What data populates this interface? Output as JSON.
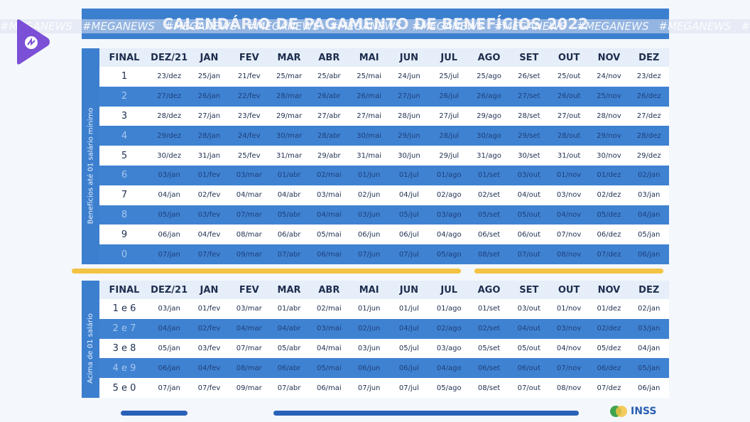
{
  "header": {
    "title": "CALENDÁRIO DE PAGAMENTO DE BENEFÍCIOS 2022",
    "watermark": "#MEGANEWS"
  },
  "columns": [
    "FINAL",
    "DEZ/21",
    "JAN",
    "FEV",
    "MAR",
    "ABR",
    "MAI",
    "JUN",
    "JUL",
    "AGO",
    "SET",
    "OUT",
    "NOV",
    "DEZ"
  ],
  "tables": [
    {
      "side_label": "Benefícios até 01 salário mínimo",
      "rows": [
        [
          "1",
          "23/dez",
          "25/jan",
          "21/fev",
          "25/mar",
          "25/abr",
          "25/mai",
          "24/jun",
          "25/jul",
          "25/ago",
          "26/set",
          "25/out",
          "24/nov",
          "23/dez"
        ],
        [
          "2",
          "27/dez",
          "26/jan",
          "22/fev",
          "28/mar",
          "26/abr",
          "26/mai",
          "27/jun",
          "26/jul",
          "26/ago",
          "27/set",
          "26/out",
          "25/nov",
          "26/dez"
        ],
        [
          "3",
          "28/dez",
          "27/jan",
          "23/fev",
          "29/mar",
          "27/abr",
          "27/mai",
          "28/jun",
          "27/jul",
          "29/ago",
          "28/set",
          "27/out",
          "28/nov",
          "27/dez"
        ],
        [
          "4",
          "29/dez",
          "28/jan",
          "24/fev",
          "30/mar",
          "28/abr",
          "30/mai",
          "29/jun",
          "28/jul",
          "30/ago",
          "29/set",
          "28/out",
          "29/nov",
          "28/dez"
        ],
        [
          "5",
          "30/dez",
          "31/jan",
          "25/fev",
          "31/mar",
          "29/abr",
          "31/mai",
          "30/jun",
          "29/jul",
          "31/ago",
          "30/set",
          "31/out",
          "30/nov",
          "29/dez"
        ],
        [
          "6",
          "03/jan",
          "01/fev",
          "03/mar",
          "01/abr",
          "02/mai",
          "01/jun",
          "01/jul",
          "01/ago",
          "01/set",
          "03/out",
          "01/nov",
          "01/dez",
          "02/jan"
        ],
        [
          "7",
          "04/jan",
          "02/fev",
          "04/mar",
          "04/abr",
          "03/mai",
          "02/jun",
          "04/jul",
          "02/ago",
          "02/set",
          "04/out",
          "03/nov",
          "02/dez",
          "03/jan"
        ],
        [
          "8",
          "05/jan",
          "03/fev",
          "07/mar",
          "05/abr",
          "04/mai",
          "03/jun",
          "05/jul",
          "03/ago",
          "05/set",
          "05/out",
          "04/nov",
          "05/dez",
          "04/jan"
        ],
        [
          "9",
          "06/jan",
          "04/fev",
          "08/mar",
          "06/abr",
          "05/mai",
          "06/jun",
          "06/jul",
          "04/ago",
          "06/set",
          "06/out",
          "07/nov",
          "06/dez",
          "05/jan"
        ],
        [
          "0",
          "07/jan",
          "07/fev",
          "09/mar",
          "07/abr",
          "06/mai",
          "07/jun",
          "07/jul",
          "05/ago",
          "08/set",
          "07/out",
          "08/nov",
          "07/dez",
          "06/jan"
        ]
      ]
    },
    {
      "side_label": "Acima de 01 salário",
      "rows": [
        [
          "1 e 6",
          "03/jan",
          "01/fev",
          "03/mar",
          "01/abr",
          "02/mai",
          "01/jun",
          "01/jul",
          "01/ago",
          "01/set",
          "03/out",
          "01/nov",
          "01/dez",
          "02/jan"
        ],
        [
          "2 e 7",
          "04/jan",
          "02/fev",
          "04/mar",
          "04/abr",
          "03/mai",
          "02/jun",
          "04/jul",
          "02/ago",
          "02/set",
          "04/out",
          "03/nov",
          "02/dez",
          "03/jan"
        ],
        [
          "3 e 8",
          "05/jan",
          "03/fev",
          "07/mar",
          "05/abr",
          "04/mai",
          "03/jun",
          "05/jul",
          "03/ago",
          "05/set",
          "05/out",
          "04/nov",
          "05/dez",
          "04/jan"
        ],
        [
          "4 e 9",
          "06/jan",
          "04/fev",
          "08/mar",
          "06/abr",
          "05/mai",
          "06/jun",
          "06/jul",
          "04/ago",
          "06/set",
          "06/out",
          "07/nov",
          "06/dez",
          "05/jan"
        ],
        [
          "5 e 0",
          "07/jan",
          "07/fev",
          "09/mar",
          "07/abr",
          "06/mai",
          "07/jun",
          "07/jul",
          "05/ago",
          "08/set",
          "07/out",
          "08/nov",
          "07/dez",
          "06/jan"
        ]
      ]
    }
  ],
  "footer": {
    "logo": "INSS"
  }
}
